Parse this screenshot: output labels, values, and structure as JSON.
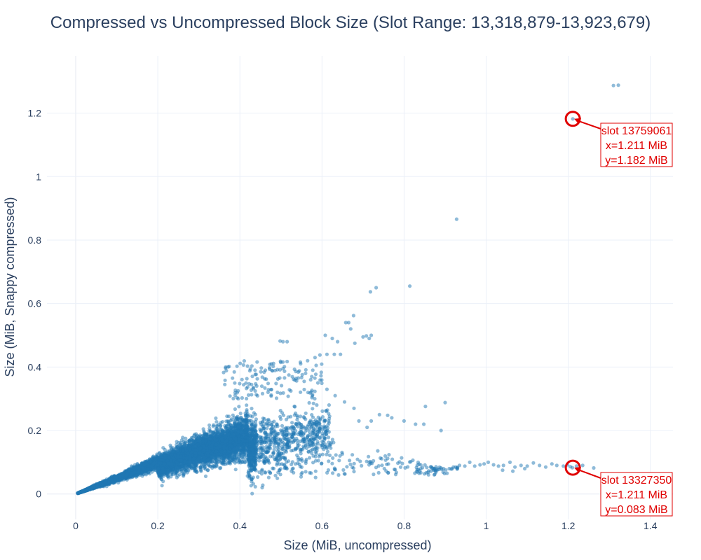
{
  "chart_data": {
    "type": "scatter",
    "title": "Compressed vs Uncompressed Block Size (Slot Range: 13,318,879-13,923,679)",
    "xlabel": "Size (MiB, uncompressed)",
    "ylabel": "Size (MiB, Snappy compressed)",
    "xlim": [
      -0.07,
      1.455
    ],
    "ylim": [
      -0.08,
      1.38
    ],
    "grid": true,
    "x_ticks": [
      0,
      0.2,
      0.4,
      0.6,
      0.8,
      1,
      1.2,
      1.4
    ],
    "x_tick_labels": [
      "0",
      "0.2",
      "0.4",
      "0.6",
      "0.8",
      "1",
      "1.2",
      "1.4"
    ],
    "y_ticks": [
      0,
      0.2,
      0.4,
      0.6,
      0.8,
      1,
      1.2
    ],
    "y_tick_labels": [
      "0",
      "0.2",
      "0.4",
      "0.6",
      "0.8",
      "1",
      "1.2"
    ],
    "marker_color": "#1f77b4",
    "marker_opacity": 0.5,
    "series": [
      {
        "outliers": [
          [
            1.31,
            1.287
          ],
          [
            1.322,
            1.288
          ],
          [
            0.928,
            0.866
          ],
          [
            0.814,
            0.655
          ],
          [
            0.732,
            0.65
          ],
          [
            0.718,
            0.637
          ],
          [
            0.677,
            0.562
          ],
          [
            0.665,
            0.54
          ],
          [
            0.658,
            0.54
          ],
          [
            0.67,
            0.52
          ],
          [
            0.708,
            0.498
          ],
          [
            0.72,
            0.5
          ],
          [
            0.7,
            0.495
          ],
          [
            0.715,
            0.49
          ],
          [
            0.608,
            0.5
          ],
          [
            0.625,
            0.49
          ],
          [
            0.638,
            0.48
          ],
          [
            0.68,
            0.475
          ],
          [
            0.505,
            0.48
          ],
          [
            0.515,
            0.48
          ],
          [
            0.498,
            0.482
          ],
          [
            0.645,
            0.44
          ],
          [
            0.612,
            0.44
          ],
          [
            0.595,
            0.438
          ],
          [
            0.63,
            0.44
          ],
          [
            0.583,
            0.43
          ],
          [
            0.565,
            0.42
          ],
          [
            0.548,
            0.41
          ],
          [
            0.9,
            0.288
          ],
          [
            0.852,
            0.276
          ],
          [
            0.828,
            0.22
          ],
          [
            0.848,
            0.22
          ],
          [
            0.8,
            0.23
          ],
          [
            0.77,
            0.24
          ],
          [
            0.76,
            0.248
          ],
          [
            0.89,
            0.2
          ],
          [
            0.74,
            0.25
          ],
          [
            0.72,
            0.23
          ],
          [
            0.69,
            0.23
          ],
          [
            0.71,
            0.21
          ],
          [
            0.678,
            0.27
          ],
          [
            0.655,
            0.29
          ],
          [
            0.632,
            0.31
          ],
          [
            0.612,
            0.33
          ],
          [
            0.59,
            0.35
          ],
          [
            0.575,
            0.37
          ],
          [
            0.56,
            0.38
          ]
        ],
        "tail": [
          [
            0.92,
            0.085
          ],
          [
            0.935,
            0.09
          ],
          [
            0.948,
            0.088
          ],
          [
            0.96,
            0.1
          ],
          [
            0.972,
            0.088
          ],
          [
            0.985,
            0.092
          ],
          [
            0.995,
            0.095
          ],
          [
            1.005,
            0.1
          ],
          [
            1.018,
            0.092
          ],
          [
            1.03,
            0.088
          ],
          [
            1.042,
            0.09
          ],
          [
            1.058,
            0.1
          ],
          [
            1.07,
            0.085
          ],
          [
            1.085,
            0.09
          ],
          [
            1.1,
            0.088
          ],
          [
            1.115,
            0.098
          ],
          [
            1.13,
            0.09
          ],
          [
            1.145,
            0.085
          ],
          [
            1.16,
            0.095
          ],
          [
            1.172,
            0.09
          ],
          [
            1.188,
            0.088
          ],
          [
            1.198,
            0.092
          ],
          [
            1.205,
            0.086
          ],
          [
            1.22,
            0.088
          ],
          [
            1.235,
            0.09
          ],
          [
            1.262,
            0.082
          ],
          [
            1.04,
            0.075
          ],
          [
            1.065,
            0.072
          ],
          [
            1.094,
            0.08
          ],
          [
            0.91,
            0.08
          ],
          [
            0.885,
            0.078
          ],
          [
            0.866,
            0.086
          ],
          [
            1.21,
            0.083
          ],
          [
            1.211,
            1.182
          ]
        ]
      }
    ],
    "annotations": [
      {
        "slot_label": "slot 13759061",
        "x_label": "x=1.211 MiB",
        "y_label": "y=1.182 MiB",
        "x": 1.211,
        "y": 1.182
      },
      {
        "slot_label": "slot 13327350",
        "x_label": "x=1.211 MiB",
        "y_label": "y=0.083 MiB",
        "x": 1.211,
        "y": 0.083
      }
    ],
    "annotation_color": "#e00000"
  }
}
